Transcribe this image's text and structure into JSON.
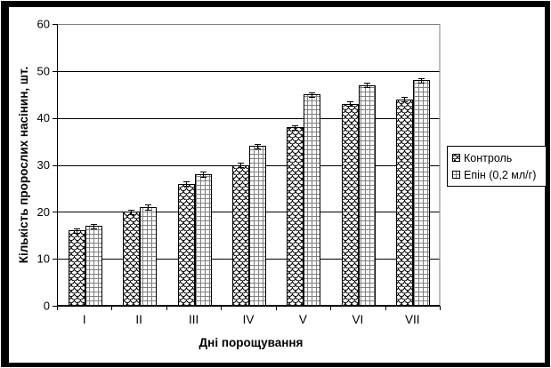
{
  "chart": {
    "frame_color": "#000000",
    "background": "#ffffff"
  },
  "chart_data": {
    "type": "bar",
    "title": "",
    "categories": [
      "I",
      "II",
      "III",
      "IV",
      "V",
      "VI",
      "VII"
    ],
    "series": [
      {
        "name": "Контроль",
        "pattern": "fishscale",
        "values": [
          16,
          20,
          26,
          30,
          38,
          43,
          44
        ],
        "error_bar": 0.5
      },
      {
        "name": "Епін (0,2 мл/г)",
        "pattern": "grid",
        "values": [
          17,
          21,
          28,
          34,
          45,
          47,
          48
        ],
        "error_bar": 0.5
      }
    ],
    "xlabel": "Дні порощування",
    "ylabel": "Кількість пророслих насінин, шт.",
    "ylim": [
      0,
      60
    ],
    "ytick_step": 10,
    "yticks": [
      0,
      10,
      20,
      30,
      40,
      50,
      60
    ],
    "grid": "horizontal",
    "legend_position": "right-middle",
    "colors": {
      "bar_fill": "#ffffff",
      "bar_stroke": "#000000",
      "fishscale_line": "#000000",
      "grid_pattern_line": "#808080",
      "gridline": "#000000",
      "plot_border": "#808080",
      "axis": "#000000",
      "error_bar": "#000000",
      "text": "#000000"
    }
  },
  "legend": {
    "items": [
      {
        "label": "Контроль",
        "swatch": "fishscale"
      },
      {
        "label": "Епін (0,2 мл/г)",
        "swatch": "grid"
      }
    ]
  }
}
